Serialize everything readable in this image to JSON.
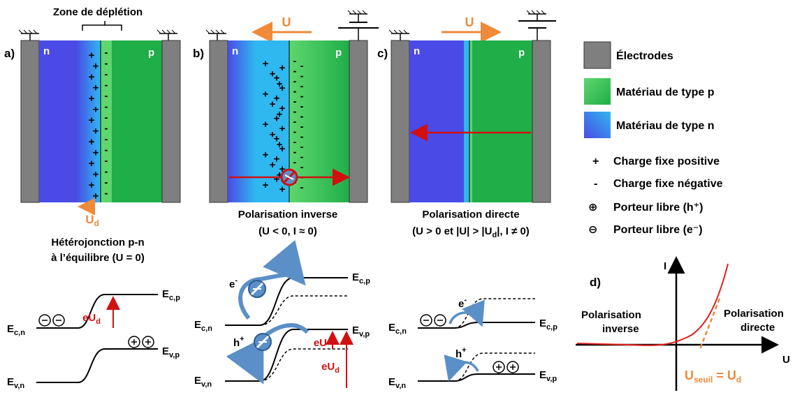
{
  "colors": {
    "electrode": "#7f7f7f",
    "p_material": "#1fae48",
    "n_material": "#4a4ae6",
    "depletion_n": "#2fb8f0",
    "depletion_p": "#5fd66e",
    "arrow_red": "#d11010",
    "voltage_orange": "#ee8a3a",
    "carrier_blue": "#5b8fc7"
  },
  "labels": {
    "zone_depletion": "Zone de déplétion",
    "n": "n",
    "p": "p",
    "U": "U",
    "Ud": "U",
    "d_sub": "d",
    "plus": "+",
    "minus": "-"
  },
  "panels": {
    "a": {
      "letter": "a)",
      "caption_line1": "Hétérojonction p-n",
      "caption_line2": "à l’équilibre (U = 0)"
    },
    "b": {
      "letter": "b)",
      "caption_line1": "Polarisation inverse",
      "caption_line2": "(U < 0, I ≈ 0)"
    },
    "c": {
      "letter": "c)",
      "caption_line1": "Polarisation directe",
      "caption_line2": "(U > 0 et |U| > |U",
      "caption_line2_sub": "d",
      "caption_line2_end": "|, I ≠ 0)"
    },
    "d": {
      "letter": "d)",
      "axis_y": "I",
      "axis_x": "U",
      "left_label_line1": "Polarisation",
      "left_label_line2": "inverse",
      "right_label_line1": "Polarisation",
      "right_label_line2": "directe",
      "threshold_main": "U",
      "threshold_sub": "seuil",
      "threshold_eq": " = U",
      "threshold_sub2": "d"
    }
  },
  "legend": [
    {
      "label": "Électrodes",
      "swatch": "electrode"
    },
    {
      "label": "Matériau de type p",
      "swatch": "p"
    },
    {
      "label": "Matériau de type n",
      "swatch": "n"
    },
    {
      "symbol": "+",
      "label": "Charge fixe positive"
    },
    {
      "symbol": "-",
      "label": "Charge fixe négative"
    },
    {
      "symbol": "⊕",
      "label": "Porteur libre (h⁺)"
    },
    {
      "symbol": "⊖",
      "label": "Porteur libre (e⁻)"
    }
  ],
  "bands": {
    "Ecn": "E",
    "Ecn_sub": "c,n",
    "Ecp": "E",
    "Ecp_sub": "c,p",
    "Evn": "E",
    "Evn_sub": "v,n",
    "Evp": "E",
    "Evp_sub": "v,p",
    "eUd": "eU",
    "eUd_sub": "d",
    "eU": "eU",
    "e_minus": "e",
    "h_plus": "h",
    "minus_sup": "-",
    "plus_sup": "+"
  }
}
